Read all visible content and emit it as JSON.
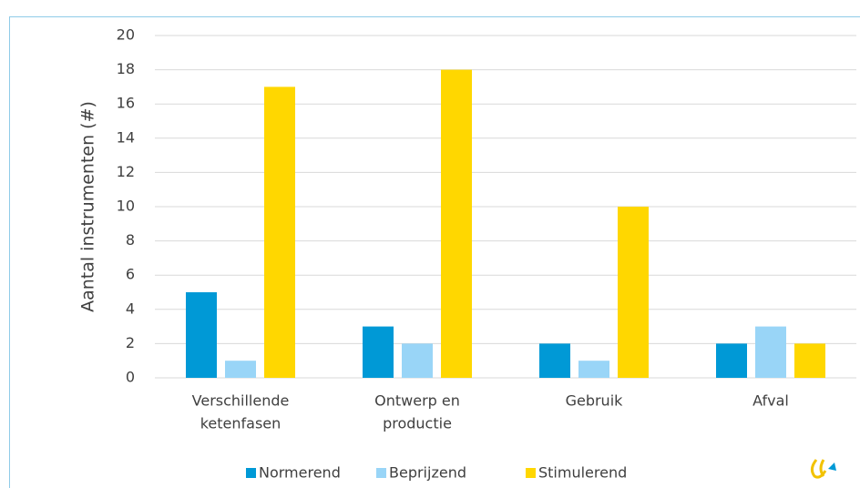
{
  "chart_data": {
    "type": "bar",
    "y_label": "Aantal instrumenten (#)",
    "categories": [
      [
        "Verschillende",
        "ketenfasen"
      ],
      [
        "Ontwerp en",
        "productie"
      ],
      [
        "Gebruik"
      ],
      [
        "Afval"
      ]
    ],
    "series": [
      {
        "name": "Normerend",
        "color": "#0099d6",
        "values": [
          5,
          3,
          2,
          2
        ]
      },
      {
        "name": "Beprijzend",
        "color": "#99d5f7",
        "values": [
          1,
          2,
          1,
          3
        ]
      },
      {
        "name": "Stimulerend",
        "color": "#ffd700",
        "values": [
          17,
          18,
          10,
          2
        ]
      }
    ],
    "ylim": [
      0,
      20
    ],
    "yticks": [
      0,
      2,
      4,
      6,
      8,
      10,
      12,
      14,
      16,
      18,
      20
    ],
    "grid": true,
    "legend": "bottom"
  }
}
